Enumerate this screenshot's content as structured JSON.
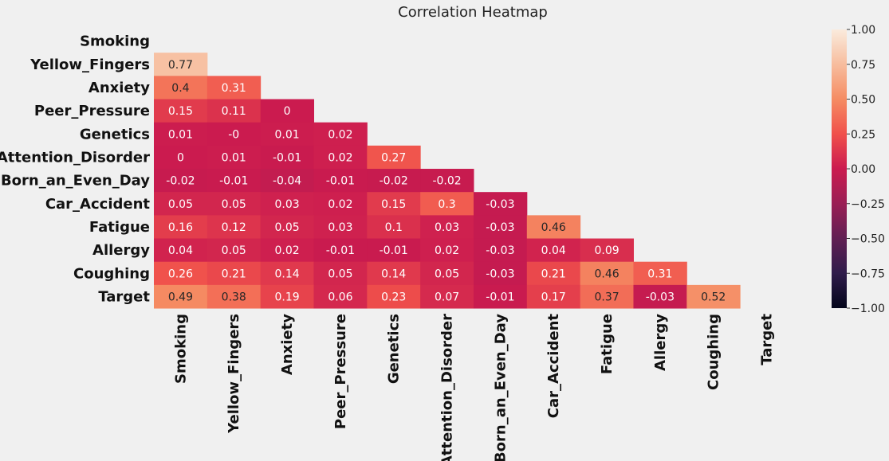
{
  "chart_data": {
    "type": "heatmap",
    "title": "Correlation Heatmap",
    "labels": [
      "Smoking",
      "Yellow_Fingers",
      "Anxiety",
      "Peer_Pressure",
      "Genetics",
      "Attention_Disorder",
      "Born_an_Even_Day",
      "Car_Accident",
      "Fatigue",
      "Allergy",
      "Coughing",
      "Target"
    ],
    "matrix": [
      [],
      [
        "0.77"
      ],
      [
        "0.4",
        "0.31"
      ],
      [
        "0.15",
        "0.11",
        "0"
      ],
      [
        "0.01",
        "-0",
        "0.01",
        "0.02"
      ],
      [
        "0",
        "0.01",
        "-0.01",
        "0.02",
        "0.27"
      ],
      [
        "-0.02",
        "-0.01",
        "-0.04",
        "-0.01",
        "-0.02",
        "-0.02"
      ],
      [
        "0.05",
        "0.05",
        "0.03",
        "0.02",
        "0.15",
        "0.3",
        "-0.03"
      ],
      [
        "0.16",
        "0.12",
        "0.05",
        "0.03",
        "0.1",
        "0.03",
        "-0.03",
        "0.46"
      ],
      [
        "0.04",
        "0.05",
        "0.02",
        "-0.01",
        "-0.01",
        "0.02",
        "-0.03",
        "0.04",
        "0.09"
      ],
      [
        "0.26",
        "0.21",
        "0.14",
        "0.05",
        "0.14",
        "0.05",
        "-0.03",
        "0.21",
        "0.46",
        "0.31"
      ],
      [
        "0.49",
        "0.38",
        "0.19",
        "0.06",
        "0.23",
        "0.07",
        "-0.01",
        "0.17",
        "0.37",
        "-0.03",
        "0.52"
      ]
    ],
    "mask": "upper triangle including diagonal",
    "colorbar": {
      "range": [
        -1,
        1
      ],
      "ticks": [
        "1.00",
        "0.75",
        "0.50",
        "0.25",
        "0.00",
        "−0.25",
        "−0.50",
        "−0.75",
        "−1.00"
      ],
      "tick_values": [
        1,
        0.75,
        0.5,
        0.25,
        0,
        -0.25,
        -0.5,
        -0.75,
        -1
      ],
      "colormap": "rocket",
      "stops": [
        "#03051a",
        "#2f1c4b",
        "#611f53",
        "#9a1f55",
        "#cb1b4f",
        "#f0504b",
        "#f58c63",
        "#f7bd9e",
        "#faebdd"
      ]
    }
  }
}
